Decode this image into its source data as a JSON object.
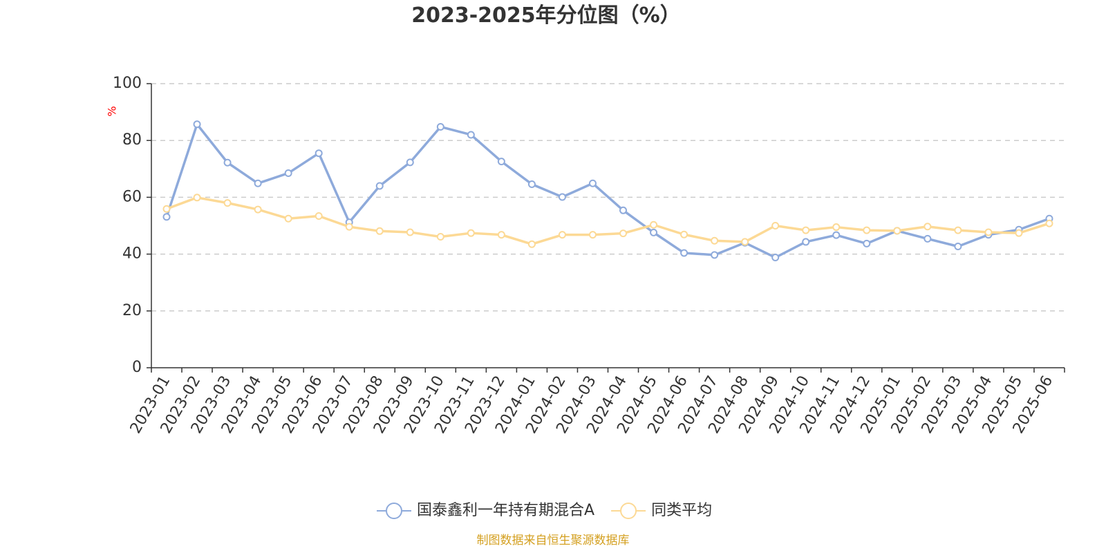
{
  "chart_data": {
    "type": "line",
    "title": "2023-2025年分位图（%）",
    "ylabel": "%",
    "xlabel": "",
    "ylim": [
      0,
      100
    ],
    "yticks": [
      0,
      20,
      40,
      60,
      80,
      100
    ],
    "grid": true,
    "legend_position": "bottom-center",
    "categories": [
      "2023-01",
      "2023-02",
      "2023-03",
      "2023-04",
      "2023-05",
      "2023-06",
      "2023-07",
      "2023-08",
      "2023-09",
      "2023-10",
      "2023-11",
      "2023-12",
      "2024-01",
      "2024-02",
      "2024-03",
      "2024-04",
      "2024-05",
      "2024-06",
      "2024-07",
      "2024-08",
      "2024-09",
      "2024-10",
      "2024-11",
      "2024-12",
      "2025-01",
      "2025-02",
      "2025-03",
      "2025-04",
      "2025-05",
      "2025-06"
    ],
    "series": [
      {
        "name": "国泰鑫利一年持有期混合A",
        "color": "#8eaadb",
        "values": [
          53.1,
          85.7,
          72.2,
          64.9,
          68.5,
          75.5,
          51.2,
          64.0,
          72.3,
          84.8,
          82.0,
          72.6,
          64.6,
          60.1,
          64.9,
          55.4,
          47.6,
          40.4,
          39.7,
          44.0,
          38.8,
          44.3,
          46.7,
          43.7,
          48.2,
          45.4,
          42.7,
          46.8,
          48.6,
          52.5
        ]
      },
      {
        "name": "同类平均",
        "color": "#fcd995",
        "values": [
          55.9,
          59.9,
          58.0,
          55.7,
          52.5,
          53.4,
          49.6,
          48.1,
          47.7,
          46.1,
          47.4,
          46.8,
          43.5,
          46.8,
          46.8,
          47.3,
          50.3,
          46.9,
          44.7,
          44.3,
          50.0,
          48.4,
          49.5,
          48.4,
          48.2,
          49.7,
          48.4,
          47.7,
          47.4,
          50.8
        ]
      }
    ]
  },
  "source": "制图数据来自恒生聚源数据库",
  "colors": {
    "axis": "#333333",
    "grid": "#cccccc",
    "unit_label": "#ff0000",
    "source_text": "#d4a021"
  }
}
